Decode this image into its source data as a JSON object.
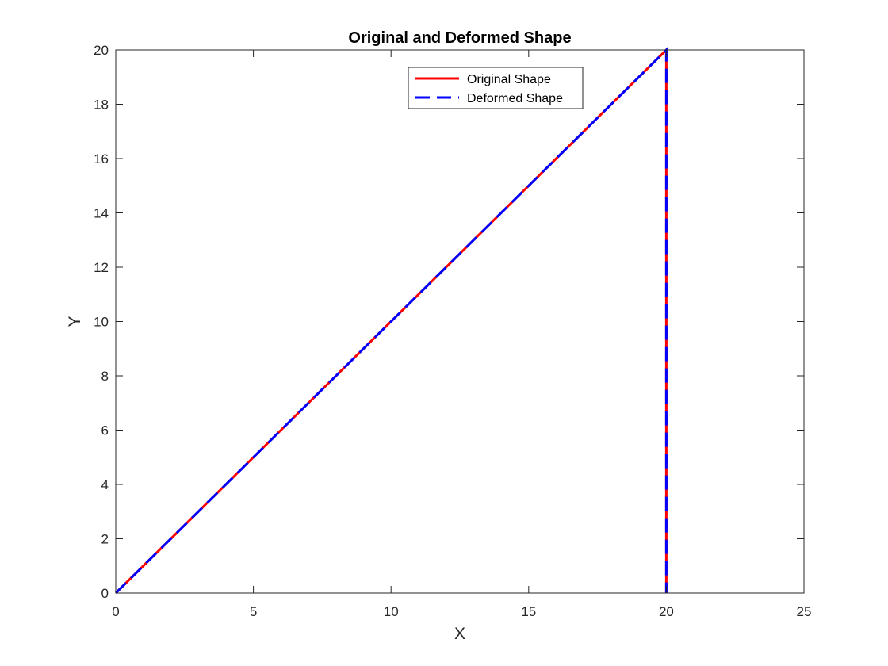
{
  "chart_data": {
    "type": "line",
    "title": "Original and Deformed Shape",
    "xlabel": "X",
    "ylabel": "Y",
    "xlim": [
      0,
      25
    ],
    "ylim": [
      0,
      20
    ],
    "xticks": [
      0,
      5,
      10,
      15,
      20,
      25
    ],
    "yticks": [
      0,
      2,
      4,
      6,
      8,
      10,
      12,
      14,
      16,
      18,
      20
    ],
    "xtick_labels": [
      "0",
      "5",
      "10",
      "15",
      "20",
      "25"
    ],
    "ytick_labels": [
      "0",
      "2",
      "4",
      "6",
      "8",
      "10",
      "12",
      "14",
      "16",
      "18",
      "20"
    ],
    "grid": false,
    "legend_position": "top-center",
    "series": [
      {
        "name": "Original Shape",
        "x": [
          0,
          20,
          20
        ],
        "y": [
          0,
          20,
          0
        ],
        "color": "#ff0000",
        "line_style": "solid"
      },
      {
        "name": "Deformed Shape",
        "x": [
          0,
          20,
          20
        ],
        "y": [
          0,
          20,
          0
        ],
        "color": "#0000ff",
        "line_style": "dashed"
      }
    ]
  }
}
